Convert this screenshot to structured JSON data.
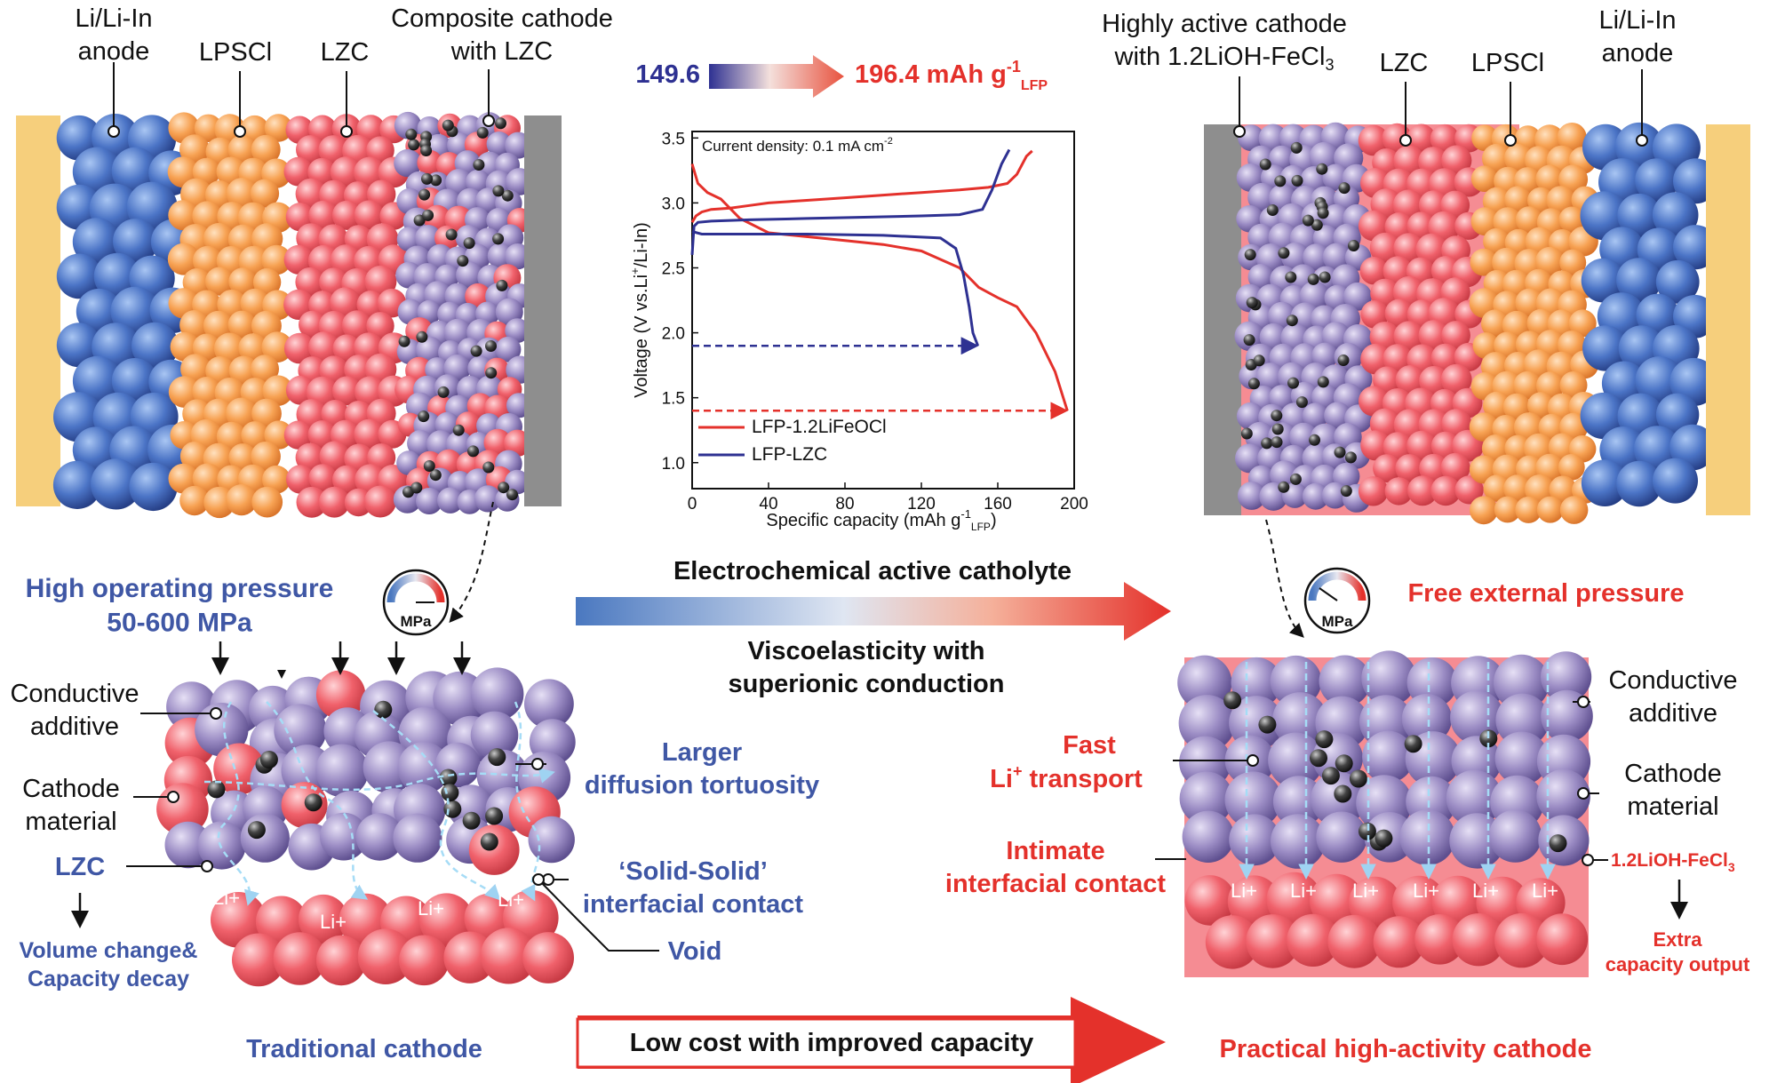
{
  "colors": {
    "blue": "#4b74c6",
    "orange": "#f7a253",
    "red": "#f0616b",
    "purple": "#9b8cc4",
    "dark": "#3a3a3a",
    "navy": "#3b4a9c",
    "accent_red": "#e4312b",
    "label_blue": "#3f57a5"
  },
  "top_left": {
    "anode": "Li/Li-In\nanode",
    "lpscl": "LPSCl",
    "lzc": "LZC",
    "cathode": "Composite cathode\nwith LZC"
  },
  "top_right": {
    "cathode": "Highly active cathode\nwith 1.2LiOH-FeCl3",
    "lzc": "LZC",
    "lpscl": "LPSCl",
    "anode": "Li/Li-In\nanode"
  },
  "capacity": {
    "from": "149.6",
    "to": "196.4 mAh g-1LFP"
  },
  "chart_data": {
    "type": "line",
    "annotation": "Current density: 0.1 mA cm-2",
    "xlabel": "Specific capacity (mAh g-1LFP)",
    "ylabel": "Voltage (V vs.Li+/Li-In)",
    "xlim": [
      0,
      200
    ],
    "ylim": [
      0.8,
      3.55
    ],
    "xticks": [
      "0",
      "40",
      "80",
      "120",
      "160",
      "200"
    ],
    "yticks": [
      "1.0",
      "1.5",
      "2.0",
      "2.5",
      "3.0",
      "3.5"
    ],
    "legend": [
      "LFP-1.2LiFeOCl",
      "LFP-LZC"
    ],
    "series": [
      {
        "name": "LFP-1.2LiFeOCl charge",
        "color": "#e4312b",
        "x": [
          0,
          2,
          5,
          10,
          20,
          30,
          40,
          60,
          80,
          100,
          120,
          140,
          155,
          165,
          170,
          175,
          178
        ],
        "y": [
          2.85,
          2.9,
          2.93,
          2.95,
          2.96,
          2.98,
          3.0,
          3.02,
          3.04,
          3.06,
          3.08,
          3.1,
          3.12,
          3.15,
          3.22,
          3.36,
          3.4
        ]
      },
      {
        "name": "LFP-1.2LiFeOCl discharge",
        "color": "#e4312b",
        "x": [
          0,
          3,
          8,
          15,
          25,
          40,
          60,
          80,
          100,
          120,
          140,
          150,
          160,
          170,
          180,
          190,
          196.4
        ],
        "y": [
          3.3,
          3.15,
          3.08,
          3.03,
          2.88,
          2.77,
          2.74,
          2.71,
          2.68,
          2.63,
          2.5,
          2.35,
          2.27,
          2.2,
          2.0,
          1.7,
          1.4
        ]
      },
      {
        "name": "LFP-LZC charge",
        "color": "#2e3192",
        "x": [
          0,
          1,
          3,
          10,
          30,
          60,
          90,
          120,
          140,
          152,
          157,
          162,
          166
        ],
        "y": [
          2.6,
          2.82,
          2.85,
          2.86,
          2.87,
          2.88,
          2.89,
          2.9,
          2.91,
          2.95,
          3.1,
          3.3,
          3.41
        ]
      },
      {
        "name": "LFP-LZC discharge",
        "color": "#2e3192",
        "x": [
          0,
          5,
          20,
          60,
          100,
          130,
          138,
          142,
          145,
          147,
          149.6
        ],
        "y": [
          2.78,
          2.76,
          2.76,
          2.76,
          2.75,
          2.73,
          2.65,
          2.45,
          2.2,
          2.0,
          1.9
        ]
      }
    ],
    "arrows": [
      {
        "name": "LFP-LZC capacity",
        "color": "#2e3192",
        "y": 1.9,
        "x_end": 149.6
      },
      {
        "name": "LFP-1.2LiFeOCl capacity",
        "color": "#e4312b",
        "y": 1.4,
        "x_end": 196.4
      }
    ]
  },
  "bottom_left": {
    "pressure": "High operating pressure\n50-600 MPa",
    "gauge": "MPa",
    "conductive": "Conductive\nadditive",
    "cathode_material": "Cathode\nmaterial",
    "lzc": "LZC",
    "volume": "Volume change&\nCapacity decay",
    "tortuosity": "Larger\ndiffusion tortuosity",
    "solid": "‘Solid-Solid’\ninterfacial contact",
    "void": "Void",
    "li": "Li+",
    "caption": "Traditional cathode"
  },
  "middle": {
    "catholyte": "Electrochemical active catholyte",
    "visco": "Viscoelasticity with\nsuperionic conduction",
    "low_cost": "Low cost with improved capacity"
  },
  "bottom_right": {
    "free": "Free external pressure",
    "gauge": "MPa",
    "conductive": "Conductive\nadditive",
    "cathode_material": "Cathode\nmaterial",
    "fast": "Fast\nLi+ transport",
    "intimate": "Intimate\ninterfacial contact",
    "salt": "1.2LiOH-FeCl3",
    "extra": "Extra\ncapacity output",
    "li": "Li+",
    "caption": "Practical high-activity cathode"
  }
}
